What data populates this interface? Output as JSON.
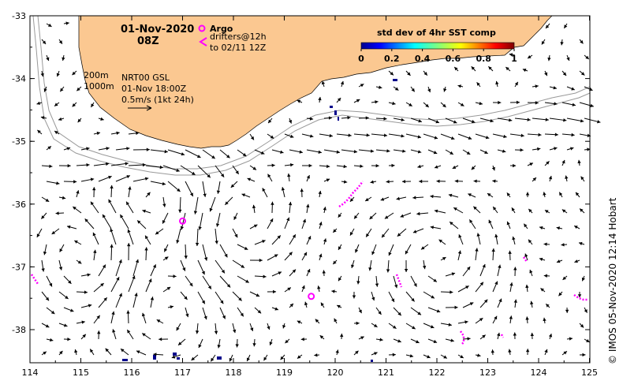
{
  "map": {
    "date_title": "01-Nov-2020",
    "hour_title": "08Z",
    "legend": {
      "argo_label": "Argo",
      "drifters_label": "drifters@12h",
      "drifters_to": "to 02/11 12Z"
    },
    "colorbar": {
      "title": "std dev of 4hr SST comp",
      "ticks": [
        "0",
        "0.2",
        "0.4",
        "0.6",
        "0.8",
        "1"
      ]
    },
    "isobaths": {
      "line1": "200m",
      "line2": "1000m"
    },
    "product": {
      "line1": "NRT00 GSL",
      "line2": "01-Nov 18:00Z",
      "scale_label": "0.5m/s (1kt 24h)"
    },
    "credit": "© IMOS 05-Nov-2020 12:14 Hobart",
    "x_ticks": [
      "114",
      "115",
      "116",
      "117",
      "118",
      "119",
      "120",
      "121",
      "122",
      "123",
      "124",
      "125"
    ],
    "y_ticks": [
      "-33",
      "-34",
      "-35",
      "-36",
      "-37",
      "-38"
    ],
    "colors": {
      "land": "#fbc891",
      "argo": "#ff00ff",
      "drifter": "#ff00ff",
      "arrow": "#000000",
      "isobath": "#999999",
      "sst_patch": "#00008b"
    },
    "argo_floats": [
      {
        "lon": 117.0,
        "lat": -36.27
      },
      {
        "lon": 119.53,
        "lat": -37.47
      }
    ]
  }
}
